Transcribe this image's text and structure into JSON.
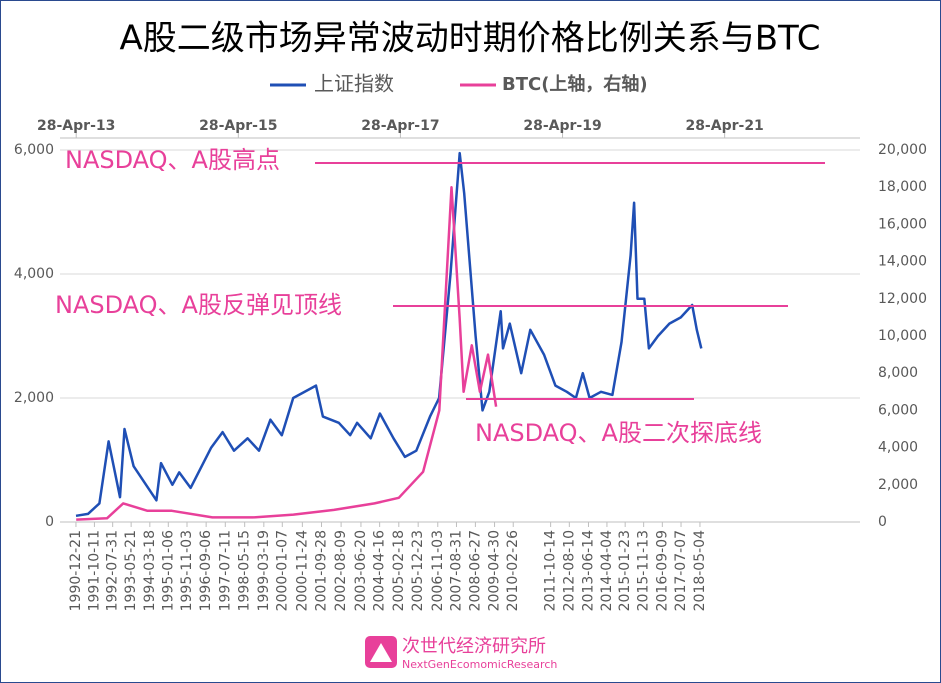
{
  "chart_data": {
    "type": "line",
    "title": "A股二级市场异常波动时期价格比例关系与BTC",
    "xlim": [
      1990.27,
      2025.36
    ],
    "xticks": [
      {
        "value": 1990.97,
        "label": "1990-12-21"
      },
      {
        "value": 1991.78,
        "label": "1991-10-11"
      },
      {
        "value": 1992.58,
        "label": "1992-07-31"
      },
      {
        "value": 1993.39,
        "label": "1993-05-21"
      },
      {
        "value": 1994.21,
        "label": "1994-03-18"
      },
      {
        "value": 1995.02,
        "label": "1995-01-06"
      },
      {
        "value": 1995.84,
        "label": "1995-11-03"
      },
      {
        "value": 1996.68,
        "label": "1996-09-06"
      },
      {
        "value": 1997.52,
        "label": "1997-07-11"
      },
      {
        "value": 1998.37,
        "label": "1998-05-15"
      },
      {
        "value": 1999.21,
        "label": "1999-03-19"
      },
      {
        "value": 2000.02,
        "label": "2000-01-07"
      },
      {
        "value": 2000.9,
        "label": "2000-11-24"
      },
      {
        "value": 2001.74,
        "label": "2001-09-28"
      },
      {
        "value": 2002.6,
        "label": "2002-08-09"
      },
      {
        "value": 2003.47,
        "label": "2003-06-20"
      },
      {
        "value": 2004.29,
        "label": "2004-04-16"
      },
      {
        "value": 2005.13,
        "label": "2005-02-18"
      },
      {
        "value": 2005.98,
        "label": "2005-12-23"
      },
      {
        "value": 2006.84,
        "label": "2006-11-03"
      },
      {
        "value": 2007.66,
        "label": "2007-08-31"
      },
      {
        "value": 2008.49,
        "label": "2008-06-27"
      },
      {
        "value": 2009.33,
        "label": "2009-04-30"
      },
      {
        "value": 2010.15,
        "label": "2010-02-26"
      },
      {
        "value": 2011.79,
        "label": "2011-10-14"
      },
      {
        "value": 2012.61,
        "label": "2012-08-10"
      },
      {
        "value": 2013.45,
        "label": "2013-06-14"
      },
      {
        "value": 2014.26,
        "label": "2014-04-04"
      },
      {
        "value": 2015.06,
        "label": "2015-01-23"
      },
      {
        "value": 2015.87,
        "label": "2015-11-13"
      },
      {
        "value": 2016.69,
        "label": "2016-09-09"
      },
      {
        "value": 2017.51,
        "label": "2017-07-07"
      },
      {
        "value": 2018.34,
        "label": "2018-05-04"
      }
    ],
    "x2lim": [
      2013.12,
      2022.99
    ],
    "x2ticks": [
      {
        "value": 2013.32,
        "label": "28-Apr-13"
      },
      {
        "value": 2015.32,
        "label": "28-Apr-15"
      },
      {
        "value": 2017.32,
        "label": "28-Apr-17"
      },
      {
        "value": 2019.32,
        "label": "28-Apr-19"
      },
      {
        "value": 2021.32,
        "label": "28-Apr-21"
      }
    ],
    "ylim": [
      0,
      6000
    ],
    "yticks": [
      0,
      {
        "value": 2000,
        "label": "2,000"
      },
      {
        "value": 4000,
        "label": "4,000"
      },
      {
        "value": 6000,
        "label": "6,000"
      }
    ],
    "y2lim": [
      0,
      20000
    ],
    "y2ticks": [
      0,
      {
        "value": 2000,
        "label": "2,000"
      },
      {
        "value": 4000,
        "label": "4,000"
      },
      {
        "value": 6000,
        "label": "6,000"
      },
      {
        "value": 8000,
        "label": "8,000"
      },
      {
        "value": 10000,
        "label": "10,000"
      },
      {
        "value": 12000,
        "label": "12,000"
      },
      {
        "value": 14000,
        "label": "14,000"
      },
      {
        "value": 16000,
        "label": "16,000"
      },
      {
        "value": 18000,
        "label": "18,000"
      },
      {
        "value": 20000,
        "label": "20,000"
      }
    ],
    "grid": true,
    "series": [
      {
        "name": "上证指数",
        "color": "#1f4fb5",
        "x": [
          1990.97,
          1991.5,
          1992.0,
          1992.4,
          1992.9,
          1993.1,
          1993.5,
          1994.5,
          1994.7,
          1995.2,
          1995.5,
          1996.0,
          1996.9,
          1997.4,
          1997.9,
          1998.5,
          1999.0,
          1999.5,
          2000.0,
          2000.5,
          2001.5,
          2001.8,
          2002.5,
          2003.0,
          2003.3,
          2003.9,
          2004.3,
          2004.9,
          2005.4,
          2005.9,
          2006.5,
          2006.9,
          2007.4,
          2007.8,
          2008.0,
          2008.5,
          2008.8,
          2009.1,
          2009.6,
          2009.7,
          2010.0,
          2010.5,
          2010.9,
          2011.5,
          2012.0,
          2012.5,
          2012.9,
          2013.2,
          2013.5,
          2014.0,
          2014.5,
          2014.9,
          2015.3,
          2015.45,
          2015.6,
          2015.9,
          2016.1,
          2016.5,
          2017.0,
          2017.5,
          2018.0,
          2018.2,
          2018.4
        ],
        "values": [
          100,
          130,
          300,
          1300,
          400,
          1500,
          900,
          350,
          950,
          600,
          800,
          550,
          1200,
          1450,
          1150,
          1350,
          1150,
          1650,
          1400,
          2000,
          2200,
          1700,
          1600,
          1400,
          1600,
          1350,
          1750,
          1350,
          1050,
          1150,
          1700,
          2000,
          4000,
          5950,
          5300,
          3000,
          1800,
          2100,
          3400,
          2800,
          3200,
          2400,
          3100,
          2700,
          2200,
          2100,
          2000,
          2400,
          2000,
          2100,
          2050,
          2900,
          4300,
          5150,
          3600,
          3600,
          2800,
          3000,
          3200,
          3300,
          3500,
          3100,
          2800
        ]
      },
      {
        "name": "BTC(上轴，右轴)",
        "color": "#e8409a",
        "axis": "y2",
        "xaxis": "x2",
        "x": [
          2013.32,
          2013.7,
          2013.9,
          2014.2,
          2014.5,
          2015.0,
          2015.5,
          2016.0,
          2016.5,
          2017.0,
          2017.3,
          2017.6,
          2017.8,
          2017.95,
          2018.05,
          2018.1,
          2018.2,
          2018.3,
          2018.4,
          2018.5
        ],
        "values": [
          130,
          200,
          1000,
          600,
          600,
          250,
          250,
          400,
          650,
          1000,
          1300,
          2700,
          6000,
          18000,
          11000,
          7000,
          9500,
          7000,
          9000,
          6200
        ]
      }
    ],
    "annotations": [
      {
        "text": "NASDAQ、A股高点",
        "y": 5790
      },
      {
        "text": "NASDAQ、A股反弹见顶线",
        "y": 3484
      },
      {
        "text": "NASDAQ、A股二次探底线",
        "y": 1984
      }
    ],
    "footer": {
      "name": "次世代经济研究所",
      "subtitle": "NextGenEcomomicResearch"
    }
  }
}
